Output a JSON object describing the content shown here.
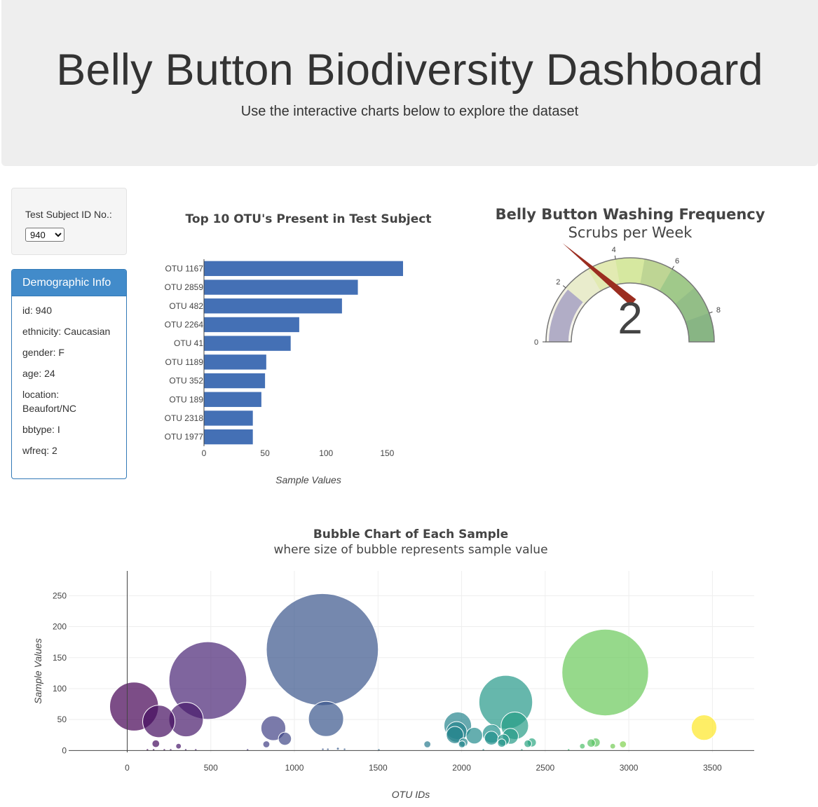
{
  "header": {
    "title": "Belly Button Biodiversity Dashboard",
    "subtitle": "Use the interactive charts below to explore the dataset"
  },
  "selector": {
    "label": "Test Subject ID No.:",
    "selected": "940"
  },
  "demographics": {
    "heading": "Demographic Info",
    "rows": [
      "id: 940",
      "ethnicity: Caucasian",
      "gender: F",
      "age: 24",
      "location: Beaufort/NC",
      "bbtype: I",
      "wfreq: 2"
    ]
  },
  "colors": {
    "bar": "#4470b5",
    "needle": "#9b2d20",
    "panel_heading": "#428bca"
  },
  "chart_data": [
    {
      "type": "bar",
      "orientation": "horizontal",
      "title": "Top 10 OTU's Present in Test Subject",
      "xlabel": "Sample Values",
      "ylabel": "",
      "categories": [
        "OTU 1167",
        "OTU 2859",
        "OTU 482",
        "OTU 2264",
        "OTU 41",
        "OTU 1189",
        "OTU 352",
        "OTU 189",
        "OTU 2318",
        "OTU 1977"
      ],
      "values": [
        163,
        126,
        113,
        78,
        71,
        51,
        50,
        47,
        40,
        40
      ],
      "xlim": [
        0,
        163
      ],
      "xticks": [
        0,
        50,
        100,
        150
      ],
      "grid": false
    },
    {
      "type": "gauge",
      "title": "Belly Button Washing Frequency",
      "subtitle": "Scrubs per Week",
      "value": 2,
      "value_label": "2",
      "range": [
        0,
        9
      ],
      "ticks": [
        0,
        2,
        4,
        6,
        8
      ],
      "bands": [
        {
          "range": [
            0,
            1
          ],
          "color": "#f6f5ee"
        },
        {
          "range": [
            1,
            2
          ],
          "color": "#f2f0e2"
        },
        {
          "range": [
            2,
            3
          ],
          "color": "#e9eccc"
        },
        {
          "range": [
            3,
            4
          ],
          "color": "#e2eab2"
        },
        {
          "range": [
            4,
            5
          ],
          "color": "#d6e8a0"
        },
        {
          "range": [
            5,
            6
          ],
          "color": "#bed594"
        },
        {
          "range": [
            6,
            7
          ],
          "color": "#a0c98a"
        },
        {
          "range": [
            7,
            8
          ],
          "color": "#93be87"
        },
        {
          "range": [
            8,
            9
          ],
          "color": "#88b584"
        }
      ],
      "value_bar_color": "#b1adc6"
    },
    {
      "type": "scatter",
      "mode": "bubble",
      "title": "Bubble Chart of Each Sample",
      "subtitle": "where size of bubble represents sample value",
      "xlabel": "OTU IDs",
      "ylabel": "Sample Values",
      "xlim": [
        -350,
        3750
      ],
      "ylim": [
        -3,
        290
      ],
      "xticks": [
        0,
        500,
        1000,
        1500,
        2000,
        2500,
        3000,
        3500
      ],
      "yticks": [
        0,
        50,
        100,
        150,
        200,
        250
      ],
      "grid": true,
      "points": [
        {
          "x": 41,
          "y": 71
        },
        {
          "x": 189,
          "y": 47
        },
        {
          "x": 352,
          "y": 50
        },
        {
          "x": 482,
          "y": 113
        },
        {
          "x": 171,
          "y": 11
        },
        {
          "x": 307,
          "y": 7
        },
        {
          "x": 121,
          "y": 1
        },
        {
          "x": 158,
          "y": 1
        },
        {
          "x": 222,
          "y": 1
        },
        {
          "x": 260,
          "y": 1
        },
        {
          "x": 350,
          "y": 1
        },
        {
          "x": 410,
          "y": 1
        },
        {
          "x": 832,
          "y": 10
        },
        {
          "x": 874,
          "y": 36
        },
        {
          "x": 943,
          "y": 19
        },
        {
          "x": 720,
          "y": 1
        },
        {
          "x": 1167,
          "y": 163
        },
        {
          "x": 1189,
          "y": 51
        },
        {
          "x": 1170,
          "y": 2
        },
        {
          "x": 1200,
          "y": 2
        },
        {
          "x": 1260,
          "y": 3
        },
        {
          "x": 1300,
          "y": 2
        },
        {
          "x": 1505,
          "y": 1
        },
        {
          "x": 1795,
          "y": 10
        },
        {
          "x": 1977,
          "y": 40
        },
        {
          "x": 1970,
          "y": 30
        },
        {
          "x": 1960,
          "y": 25
        },
        {
          "x": 2011,
          "y": 13
        },
        {
          "x": 2002,
          "y": 10
        },
        {
          "x": 2076,
          "y": 24
        },
        {
          "x": 2180,
          "y": 27
        },
        {
          "x": 2178,
          "y": 20
        },
        {
          "x": 2240,
          "y": 12
        },
        {
          "x": 2250,
          "y": 17
        },
        {
          "x": 2264,
          "y": 78
        },
        {
          "x": 2318,
          "y": 40
        },
        {
          "x": 2292,
          "y": 23
        },
        {
          "x": 2396,
          "y": 11
        },
        {
          "x": 2420,
          "y": 13
        },
        {
          "x": 2722,
          "y": 7
        },
        {
          "x": 2775,
          "y": 12
        },
        {
          "x": 2802,
          "y": 13
        },
        {
          "x": 2859,
          "y": 126
        },
        {
          "x": 2904,
          "y": 7
        },
        {
          "x": 2965,
          "y": 10
        },
        {
          "x": 3450,
          "y": 37
        },
        {
          "x": 2130,
          "y": 1
        },
        {
          "x": 2360,
          "y": 1
        },
        {
          "x": 2640,
          "y": 1
        }
      ]
    }
  ]
}
